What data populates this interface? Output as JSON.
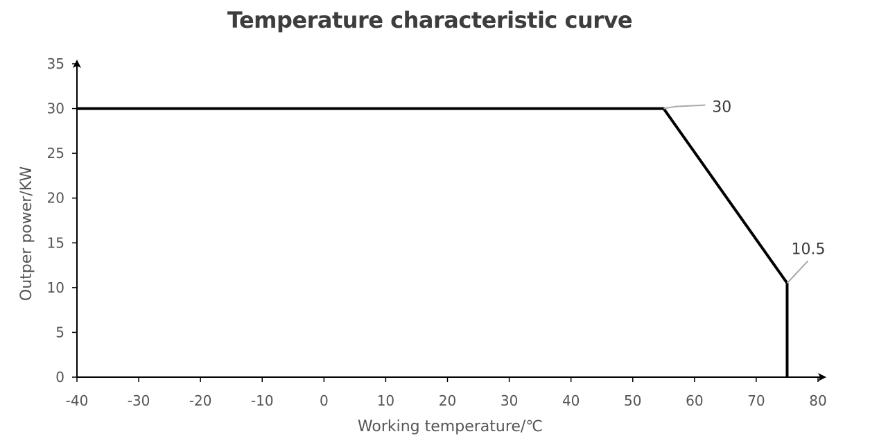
{
  "chart_data": {
    "type": "line",
    "title": "Temperature characteristic curve",
    "xlabel": "Working temperature/℃",
    "ylabel": "Outper power/KW",
    "xlim": [
      -40,
      80
    ],
    "ylim": [
      0,
      35
    ],
    "x_ticks": [
      -40,
      -30,
      -20,
      -10,
      0,
      10,
      20,
      30,
      40,
      50,
      60,
      70,
      80
    ],
    "y_ticks": [
      0,
      5,
      10,
      15,
      20,
      25,
      30,
      35
    ],
    "grid": false,
    "legend": "none",
    "series": [
      {
        "color": "#000000",
        "points": [
          {
            "x": -40,
            "y": 30
          },
          {
            "x": 55,
            "y": 30
          },
          {
            "x": 75,
            "y": 10.5
          },
          {
            "x": 75,
            "y": 0
          }
        ]
      }
    ],
    "annotations": [
      {
        "text": "30",
        "x": 55,
        "y": 30
      },
      {
        "text": "10.5",
        "x": 75,
        "y": 10.5
      }
    ]
  }
}
